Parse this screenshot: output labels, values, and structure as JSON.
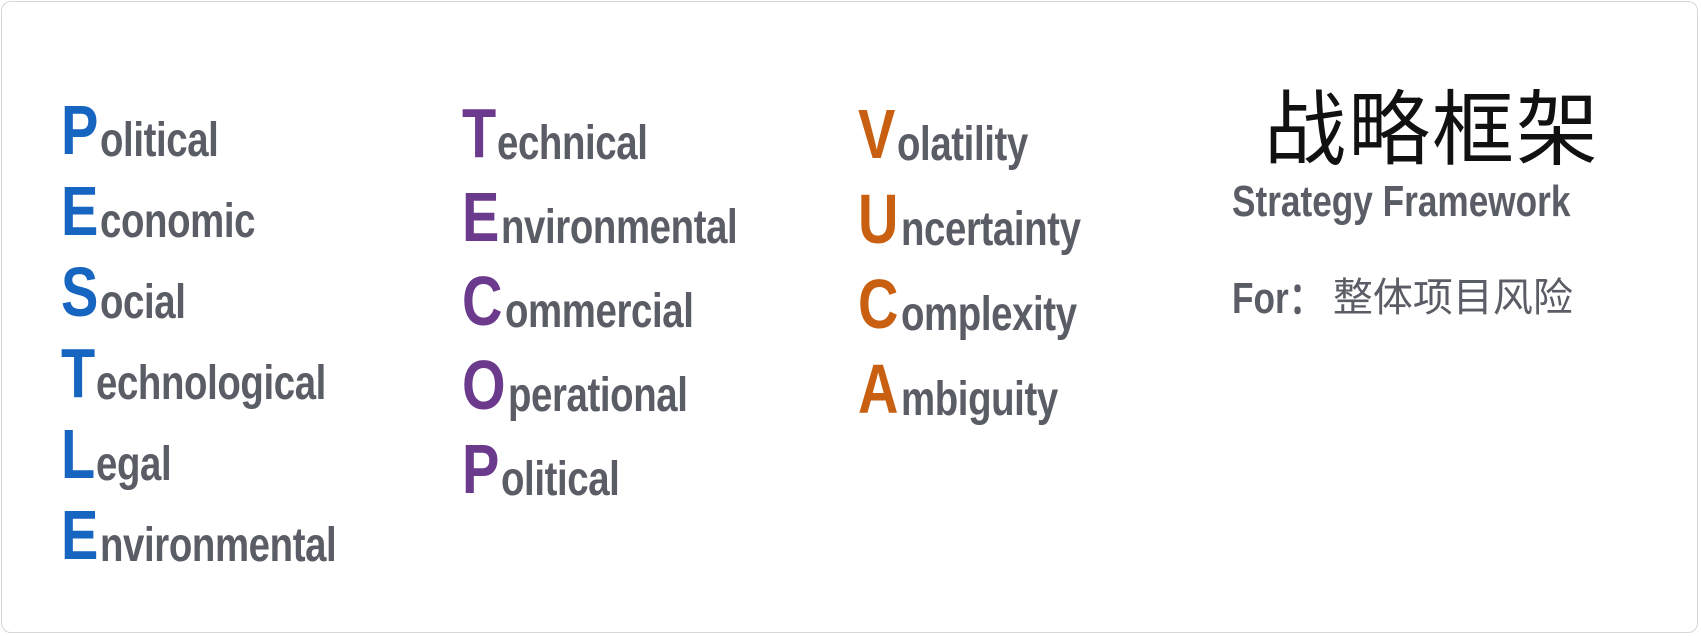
{
  "colors": {
    "pestle": "#1665c1",
    "tecop": "#6b3a8c",
    "vuca": "#c95f10",
    "text_gray": "#5a5d66",
    "title_black": "#111111"
  },
  "pestle": [
    {
      "initial": "P",
      "rest": "olitical"
    },
    {
      "initial": "E",
      "rest": "conomic"
    },
    {
      "initial": "S",
      "rest": "ocial"
    },
    {
      "initial": "T",
      "rest": "echnological"
    },
    {
      "initial": "L",
      "rest": "egal"
    },
    {
      "initial": "E",
      "rest": "nvironmental"
    }
  ],
  "tecop": [
    {
      "initial": "T",
      "rest": "echnical"
    },
    {
      "initial": "E",
      "rest": "nvironmental"
    },
    {
      "initial": "C",
      "rest": "ommercial"
    },
    {
      "initial": "O",
      "rest": "perational"
    },
    {
      "initial": "P",
      "rest": "olitical"
    }
  ],
  "vuca": [
    {
      "initial": "V",
      "rest": "olatility"
    },
    {
      "initial": "U",
      "rest": "ncertainty"
    },
    {
      "initial": "C",
      "rest": "omplexity"
    },
    {
      "initial": "A",
      "rest": "mbiguity"
    }
  ],
  "framework": {
    "title_cn": "战略框架",
    "title_en": "Strategy Framework",
    "for_label": "For：",
    "for_value": "整体项目风险"
  }
}
